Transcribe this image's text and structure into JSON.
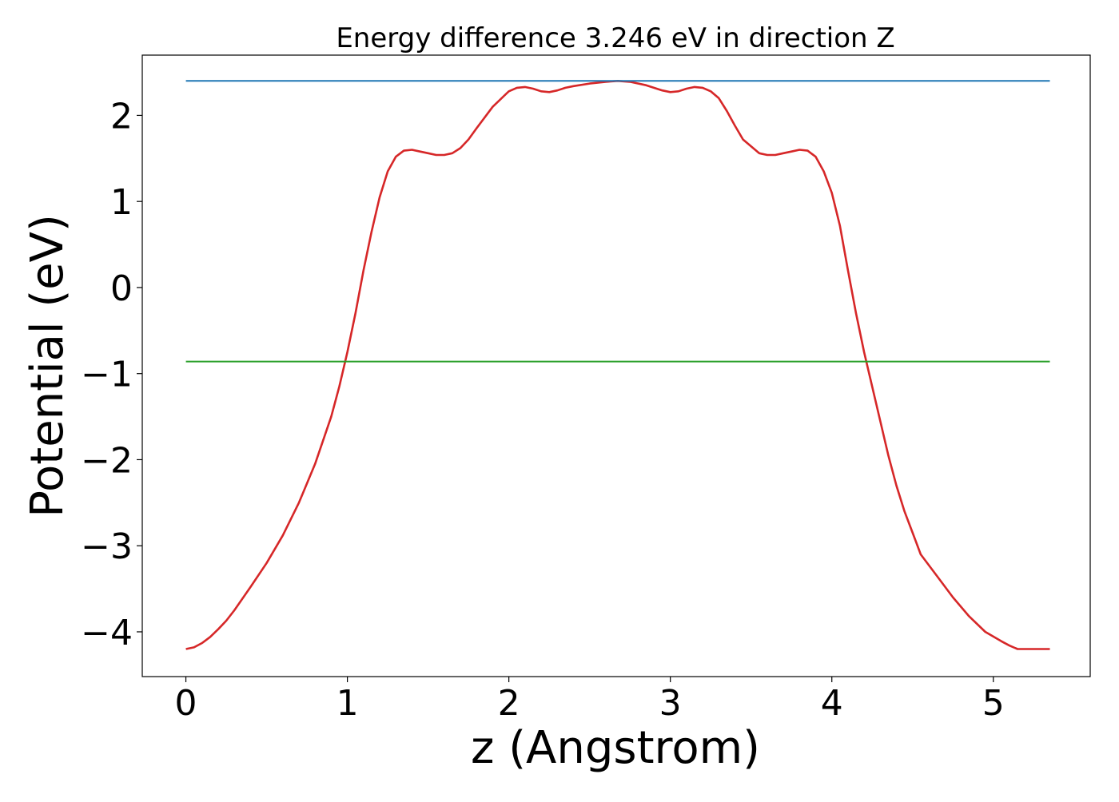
{
  "chart_data": {
    "type": "line",
    "title": "Energy difference 3.246 eV in direction Z",
    "xlabel": "z (Angstrom)",
    "ylabel": "Potential (eV)",
    "xlim": [
      -0.27,
      5.6
    ],
    "ylim": [
      -4.52,
      2.7
    ],
    "xticks": [
      0,
      1,
      2,
      3,
      4,
      5
    ],
    "xtick_labels": [
      "0",
      "1",
      "2",
      "3",
      "4",
      "5"
    ],
    "yticks": [
      -4,
      -3,
      -2,
      -1,
      0,
      1,
      2
    ],
    "ytick_labels": [
      "−4",
      "−3",
      "−2",
      "−1",
      "0",
      "1",
      "2"
    ],
    "grid": false,
    "series": [
      {
        "color": "#d62728",
        "x": [
          0,
          0.05,
          0.1,
          0.15,
          0.2,
          0.25,
          0.3,
          0.4,
          0.5,
          0.6,
          0.7,
          0.8,
          0.9,
          0.95,
          1.0,
          1.05,
          1.1,
          1.15,
          1.2,
          1.25,
          1.3,
          1.35,
          1.4,
          1.45,
          1.5,
          1.55,
          1.6,
          1.65,
          1.7,
          1.75,
          1.8,
          1.9,
          2.0,
          2.05,
          2.1,
          2.15,
          2.2,
          2.25,
          2.3,
          2.35,
          2.4,
          2.5,
          2.6,
          2.675,
          2.75,
          2.85,
          2.95,
          3.0,
          3.05,
          3.1,
          3.15,
          3.2,
          3.25,
          3.3,
          3.35,
          3.4,
          3.45,
          3.55,
          3.6,
          3.65,
          3.7,
          3.75,
          3.8,
          3.85,
          3.9,
          3.95,
          4.0,
          4.05,
          4.1,
          4.15,
          4.2,
          4.25,
          4.3,
          4.35,
          4.4,
          4.45,
          4.5,
          4.55,
          4.65,
          4.75,
          4.85,
          4.95,
          5.05,
          5.1,
          5.15,
          5.2,
          5.25,
          5.3,
          5.35
        ],
        "y": [
          -4.2,
          -4.18,
          -4.13,
          -4.06,
          -3.97,
          -3.87,
          -3.75,
          -3.48,
          -3.2,
          -2.88,
          -2.5,
          -2.05,
          -1.5,
          -1.15,
          -0.75,
          -0.3,
          0.2,
          0.65,
          1.05,
          1.35,
          1.52,
          1.59,
          1.6,
          1.58,
          1.56,
          1.54,
          1.54,
          1.56,
          1.62,
          1.72,
          1.85,
          2.1,
          2.28,
          2.32,
          2.33,
          2.31,
          2.28,
          2.27,
          2.29,
          2.32,
          2.34,
          2.37,
          2.39,
          2.4,
          2.39,
          2.35,
          2.29,
          2.27,
          2.28,
          2.31,
          2.33,
          2.32,
          2.28,
          2.2,
          2.05,
          1.88,
          1.72,
          1.56,
          1.54,
          1.54,
          1.56,
          1.58,
          1.6,
          1.59,
          1.52,
          1.35,
          1.1,
          0.72,
          0.2,
          -0.3,
          -0.75,
          -1.15,
          -1.55,
          -1.95,
          -2.3,
          -2.6,
          -2.85,
          -3.1,
          -3.35,
          -3.6,
          -3.82,
          -4.0,
          -4.11,
          -4.16,
          -4.2,
          -4.2,
          -4.2,
          -4.2,
          -4.2
        ]
      },
      {
        "color": "#1f77b4",
        "x": [
          0,
          5.35
        ],
        "y": [
          2.4,
          2.4
        ]
      },
      {
        "color": "#2ca02c",
        "x": [
          0,
          5.35
        ],
        "y": [
          -0.86,
          -0.86
        ]
      }
    ]
  }
}
